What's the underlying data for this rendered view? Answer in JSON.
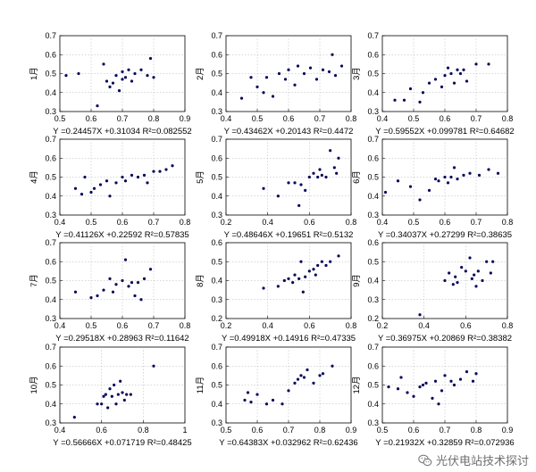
{
  "chart_data": [
    {
      "type": "scatter",
      "ylabel": "1月",
      "equation": "Y =0.24457X +0.31034 R²=0.082552",
      "xlim": [
        0.5,
        0.9
      ],
      "ylim": [
        0.3,
        0.7
      ],
      "xticks": [
        "0.5",
        "0.6",
        "0.7",
        "0.8",
        "0.9"
      ],
      "yticks": [
        "0.3",
        "0.4",
        "0.5",
        "0.6",
        "0.7"
      ],
      "points": [
        [
          0.52,
          0.49
        ],
        [
          0.56,
          0.5
        ],
        [
          0.62,
          0.33
        ],
        [
          0.64,
          0.55
        ],
        [
          0.65,
          0.46
        ],
        [
          0.66,
          0.43
        ],
        [
          0.67,
          0.45
        ],
        [
          0.68,
          0.49
        ],
        [
          0.69,
          0.41
        ],
        [
          0.7,
          0.47
        ],
        [
          0.7,
          0.51
        ],
        [
          0.71,
          0.48
        ],
        [
          0.72,
          0.52
        ],
        [
          0.73,
          0.46
        ],
        [
          0.74,
          0.5
        ],
        [
          0.76,
          0.52
        ],
        [
          0.78,
          0.49
        ],
        [
          0.79,
          0.58
        ],
        [
          0.8,
          0.48
        ]
      ]
    },
    {
      "type": "scatter",
      "ylabel": "2月",
      "equation": "Y =0.43462X +0.20143 R²=0.4472",
      "xlim": [
        0.4,
        0.8
      ],
      "ylim": [
        0.3,
        0.7
      ],
      "xticks": [
        "0.4",
        "0.5",
        "0.6",
        "0.7",
        "0.8"
      ],
      "yticks": [
        "0.3",
        "0.4",
        "0.5",
        "0.6",
        "0.7"
      ],
      "points": [
        [
          0.45,
          0.37
        ],
        [
          0.48,
          0.48
        ],
        [
          0.5,
          0.43
        ],
        [
          0.52,
          0.4
        ],
        [
          0.53,
          0.48
        ],
        [
          0.55,
          0.38
        ],
        [
          0.57,
          0.5
        ],
        [
          0.59,
          0.47
        ],
        [
          0.6,
          0.52
        ],
        [
          0.62,
          0.44
        ],
        [
          0.63,
          0.54
        ],
        [
          0.65,
          0.5
        ],
        [
          0.67,
          0.53
        ],
        [
          0.69,
          0.47
        ],
        [
          0.71,
          0.52
        ],
        [
          0.73,
          0.51
        ],
        [
          0.74,
          0.6
        ],
        [
          0.75,
          0.49
        ],
        [
          0.77,
          0.54
        ]
      ]
    },
    {
      "type": "scatter",
      "ylabel": "3月",
      "equation": "Y =0.59552X +0.099781 R²=0.64682",
      "xlim": [
        0.4,
        0.8
      ],
      "ylim": [
        0.3,
        0.7
      ],
      "xticks": [
        "0.4",
        "0.5",
        "0.6",
        "0.7",
        "0.8"
      ],
      "yticks": [
        "0.3",
        "0.4",
        "0.5",
        "0.6",
        "0.7"
      ],
      "points": [
        [
          0.44,
          0.36
        ],
        [
          0.47,
          0.36
        ],
        [
          0.49,
          0.42
        ],
        [
          0.52,
          0.35
        ],
        [
          0.53,
          0.4
        ],
        [
          0.55,
          0.45
        ],
        [
          0.57,
          0.47
        ],
        [
          0.59,
          0.43
        ],
        [
          0.6,
          0.49
        ],
        [
          0.61,
          0.53
        ],
        [
          0.62,
          0.5
        ],
        [
          0.63,
          0.45
        ],
        [
          0.64,
          0.52
        ],
        [
          0.65,
          0.5
        ],
        [
          0.66,
          0.52
        ],
        [
          0.67,
          0.46
        ],
        [
          0.7,
          0.55
        ],
        [
          0.74,
          0.55
        ]
      ]
    },
    {
      "type": "scatter",
      "ylabel": "4月",
      "equation": "Y =0.41126X +0.22592 R²=0.57835",
      "xlim": [
        0.4,
        0.8
      ],
      "ylim": [
        0.3,
        0.7
      ],
      "xticks": [
        "0.4",
        "0.5",
        "0.6",
        "0.7",
        "0.8"
      ],
      "yticks": [
        "0.3",
        "0.4",
        "0.5",
        "0.6",
        "0.7"
      ],
      "points": [
        [
          0.45,
          0.44
        ],
        [
          0.47,
          0.41
        ],
        [
          0.48,
          0.5
        ],
        [
          0.5,
          0.42
        ],
        [
          0.51,
          0.44
        ],
        [
          0.53,
          0.46
        ],
        [
          0.55,
          0.48
        ],
        [
          0.56,
          0.4
        ],
        [
          0.58,
          0.47
        ],
        [
          0.6,
          0.5
        ],
        [
          0.61,
          0.48
        ],
        [
          0.63,
          0.51
        ],
        [
          0.65,
          0.5
        ],
        [
          0.67,
          0.51
        ],
        [
          0.68,
          0.47
        ],
        [
          0.7,
          0.53
        ],
        [
          0.72,
          0.53
        ],
        [
          0.74,
          0.54
        ],
        [
          0.76,
          0.56
        ]
      ]
    },
    {
      "type": "scatter",
      "ylabel": "5月",
      "equation": "Y =0.48646X +0.19651 R²=0.5132",
      "xlim": [
        0.2,
        0.8
      ],
      "ylim": [
        0.3,
        0.7
      ],
      "xticks": [
        "0.2",
        "0.4",
        "0.6",
        "0.8"
      ],
      "yticks": [
        "0.3",
        "0.4",
        "0.5",
        "0.6",
        "0.7"
      ],
      "points": [
        [
          0.38,
          0.44
        ],
        [
          0.45,
          0.4
        ],
        [
          0.5,
          0.47
        ],
        [
          0.53,
          0.47
        ],
        [
          0.55,
          0.35
        ],
        [
          0.56,
          0.46
        ],
        [
          0.58,
          0.43
        ],
        [
          0.6,
          0.5
        ],
        [
          0.62,
          0.52
        ],
        [
          0.64,
          0.5
        ],
        [
          0.65,
          0.54
        ],
        [
          0.66,
          0.51
        ],
        [
          0.68,
          0.5
        ],
        [
          0.7,
          0.64
        ],
        [
          0.72,
          0.55
        ],
        [
          0.73,
          0.52
        ],
        [
          0.74,
          0.6
        ]
      ]
    },
    {
      "type": "scatter",
      "ylabel": "6月",
      "equation": "Y =0.34037X +0.27299 R²=0.38635",
      "xlim": [
        0.4,
        0.8
      ],
      "ylim": [
        0.3,
        0.7
      ],
      "xticks": [
        "0.4",
        "0.5",
        "0.6",
        "0.7",
        "0.8"
      ],
      "yticks": [
        "0.3",
        "0.4",
        "0.5",
        "0.6",
        "0.7"
      ],
      "points": [
        [
          0.41,
          0.42
        ],
        [
          0.45,
          0.48
        ],
        [
          0.49,
          0.45
        ],
        [
          0.52,
          0.38
        ],
        [
          0.55,
          0.43
        ],
        [
          0.57,
          0.49
        ],
        [
          0.58,
          0.48
        ],
        [
          0.6,
          0.5
        ],
        [
          0.61,
          0.47
        ],
        [
          0.62,
          0.5
        ],
        [
          0.63,
          0.55
        ],
        [
          0.64,
          0.49
        ],
        [
          0.66,
          0.51
        ],
        [
          0.68,
          0.52
        ],
        [
          0.71,
          0.51
        ],
        [
          0.74,
          0.54
        ],
        [
          0.77,
          0.52
        ]
      ]
    },
    {
      "type": "scatter",
      "ylabel": "7月",
      "equation": "Y =0.29518X +0.28963 R²=0.11642",
      "xlim": [
        0.4,
        0.8
      ],
      "ylim": [
        0.3,
        0.7
      ],
      "xticks": [
        "0.4",
        "0.5",
        "0.6",
        "0.7",
        "0.8"
      ],
      "yticks": [
        "0.3",
        "0.4",
        "0.5",
        "0.6",
        "0.7"
      ],
      "points": [
        [
          0.45,
          0.44
        ],
        [
          0.5,
          0.41
        ],
        [
          0.52,
          0.42
        ],
        [
          0.54,
          0.45
        ],
        [
          0.56,
          0.51
        ],
        [
          0.57,
          0.44
        ],
        [
          0.58,
          0.48
        ],
        [
          0.6,
          0.5
        ],
        [
          0.61,
          0.61
        ],
        [
          0.62,
          0.47
        ],
        [
          0.63,
          0.49
        ],
        [
          0.64,
          0.42
        ],
        [
          0.65,
          0.49
        ],
        [
          0.66,
          0.4
        ],
        [
          0.67,
          0.51
        ],
        [
          0.69,
          0.56
        ]
      ]
    },
    {
      "type": "scatter",
      "ylabel": "8月",
      "equation": "Y =0.49918X +0.14916 R²=0.47335",
      "xlim": [
        0.2,
        0.8
      ],
      "ylim": [
        0.2,
        0.6
      ],
      "xticks": [
        "0.2",
        "0.4",
        "0.6",
        "0.8"
      ],
      "yticks": [
        "0.2",
        "0.3",
        "0.4",
        "0.5",
        "0.6"
      ],
      "points": [
        [
          0.38,
          0.36
        ],
        [
          0.45,
          0.37
        ],
        [
          0.48,
          0.4
        ],
        [
          0.5,
          0.41
        ],
        [
          0.52,
          0.39
        ],
        [
          0.53,
          0.43
        ],
        [
          0.55,
          0.41
        ],
        [
          0.56,
          0.5
        ],
        [
          0.57,
          0.34
        ],
        [
          0.58,
          0.42
        ],
        [
          0.6,
          0.45
        ],
        [
          0.62,
          0.46
        ],
        [
          0.63,
          0.43
        ],
        [
          0.64,
          0.48
        ],
        [
          0.66,
          0.5
        ],
        [
          0.68,
          0.48
        ],
        [
          0.7,
          0.5
        ],
        [
          0.74,
          0.53
        ]
      ]
    },
    {
      "type": "scatter",
      "ylabel": "9月",
      "equation": "Y =0.36975X +0.20869 R²=0.38382",
      "xlim": [
        0.2,
        0.8
      ],
      "ylim": [
        0.2,
        0.6
      ],
      "xticks": [
        "0.2",
        "0.4",
        "0.6",
        "0.8"
      ],
      "yticks": [
        "0.2",
        "0.3",
        "0.4",
        "0.5",
        "0.6"
      ],
      "points": [
        [
          0.38,
          0.22
        ],
        [
          0.5,
          0.4
        ],
        [
          0.52,
          0.44
        ],
        [
          0.54,
          0.38
        ],
        [
          0.55,
          0.42
        ],
        [
          0.56,
          0.39
        ],
        [
          0.58,
          0.47
        ],
        [
          0.6,
          0.45
        ],
        [
          0.62,
          0.52
        ],
        [
          0.63,
          0.41
        ],
        [
          0.64,
          0.43
        ],
        [
          0.65,
          0.37
        ],
        [
          0.66,
          0.45
        ],
        [
          0.68,
          0.4
        ],
        [
          0.7,
          0.5
        ],
        [
          0.72,
          0.44
        ],
        [
          0.73,
          0.5
        ]
      ]
    },
    {
      "type": "scatter",
      "ylabel": "10月",
      "equation": "Y =0.56666X +0.071719 R²=0.48425",
      "xlim": [
        0.4,
        1.0
      ],
      "ylim": [
        0.3,
        0.7
      ],
      "xticks": [
        "0.4",
        "0.6",
        "0.8",
        "1"
      ],
      "yticks": [
        "0.3",
        "0.4",
        "0.5",
        "0.6",
        "0.7"
      ],
      "points": [
        [
          0.47,
          0.33
        ],
        [
          0.58,
          0.4
        ],
        [
          0.6,
          0.4
        ],
        [
          0.61,
          0.44
        ],
        [
          0.62,
          0.45
        ],
        [
          0.63,
          0.38
        ],
        [
          0.64,
          0.48
        ],
        [
          0.65,
          0.44
        ],
        [
          0.66,
          0.5
        ],
        [
          0.67,
          0.4
        ],
        [
          0.68,
          0.45
        ],
        [
          0.69,
          0.52
        ],
        [
          0.7,
          0.46
        ],
        [
          0.71,
          0.42
        ],
        [
          0.72,
          0.45
        ],
        [
          0.74,
          0.45
        ],
        [
          0.85,
          0.6
        ]
      ]
    },
    {
      "type": "scatter",
      "ylabel": "11月",
      "equation": "Y =0.64383X +0.032962 R²=0.62436",
      "xlim": [
        0.5,
        0.9
      ],
      "ylim": [
        0.3,
        0.7
      ],
      "xticks": [
        "0.5",
        "0.6",
        "0.7",
        "0.8",
        "0.9"
      ],
      "yticks": [
        "0.3",
        "0.4",
        "0.5",
        "0.6",
        "0.7"
      ],
      "points": [
        [
          0.56,
          0.42
        ],
        [
          0.57,
          0.46
        ],
        [
          0.58,
          0.41
        ],
        [
          0.6,
          0.45
        ],
        [
          0.63,
          0.4
        ],
        [
          0.65,
          0.42
        ],
        [
          0.68,
          0.4
        ],
        [
          0.7,
          0.47
        ],
        [
          0.72,
          0.51
        ],
        [
          0.73,
          0.53
        ],
        [
          0.74,
          0.55
        ],
        [
          0.75,
          0.54
        ],
        [
          0.76,
          0.58
        ],
        [
          0.78,
          0.51
        ],
        [
          0.8,
          0.55
        ],
        [
          0.81,
          0.56
        ],
        [
          0.84,
          0.6
        ]
      ]
    },
    {
      "type": "scatter",
      "ylabel": "12月",
      "equation": "Y =0.21932X +0.32859 R²=0.072936",
      "xlim": [
        0.5,
        0.9
      ],
      "ylim": [
        0.3,
        0.7
      ],
      "xticks": [
        "0.5",
        "0.6",
        "0.7",
        "0.8",
        "0.9"
      ],
      "yticks": [
        "0.3",
        "0.4",
        "0.5",
        "0.6",
        "0.7"
      ],
      "points": [
        [
          0.52,
          0.49
        ],
        [
          0.55,
          0.48
        ],
        [
          0.56,
          0.54
        ],
        [
          0.58,
          0.46
        ],
        [
          0.6,
          0.44
        ],
        [
          0.62,
          0.49
        ],
        [
          0.63,
          0.5
        ],
        [
          0.64,
          0.51
        ],
        [
          0.66,
          0.43
        ],
        [
          0.67,
          0.52
        ],
        [
          0.68,
          0.4
        ],
        [
          0.69,
          0.47
        ],
        [
          0.7,
          0.55
        ],
        [
          0.72,
          0.52
        ],
        [
          0.73,
          0.5
        ],
        [
          0.75,
          0.53
        ],
        [
          0.77,
          0.57
        ],
        [
          0.79,
          0.52
        ],
        [
          0.8,
          0.56
        ]
      ]
    }
  ],
  "watermark": {
    "text": "光伏电站技术探讨",
    "icon": "wechat-icon"
  },
  "colors": {
    "marker": "#0a0a5a",
    "grid": "#b0b0b0",
    "axis": "#000000",
    "watermark": "#6f6f6f"
  }
}
